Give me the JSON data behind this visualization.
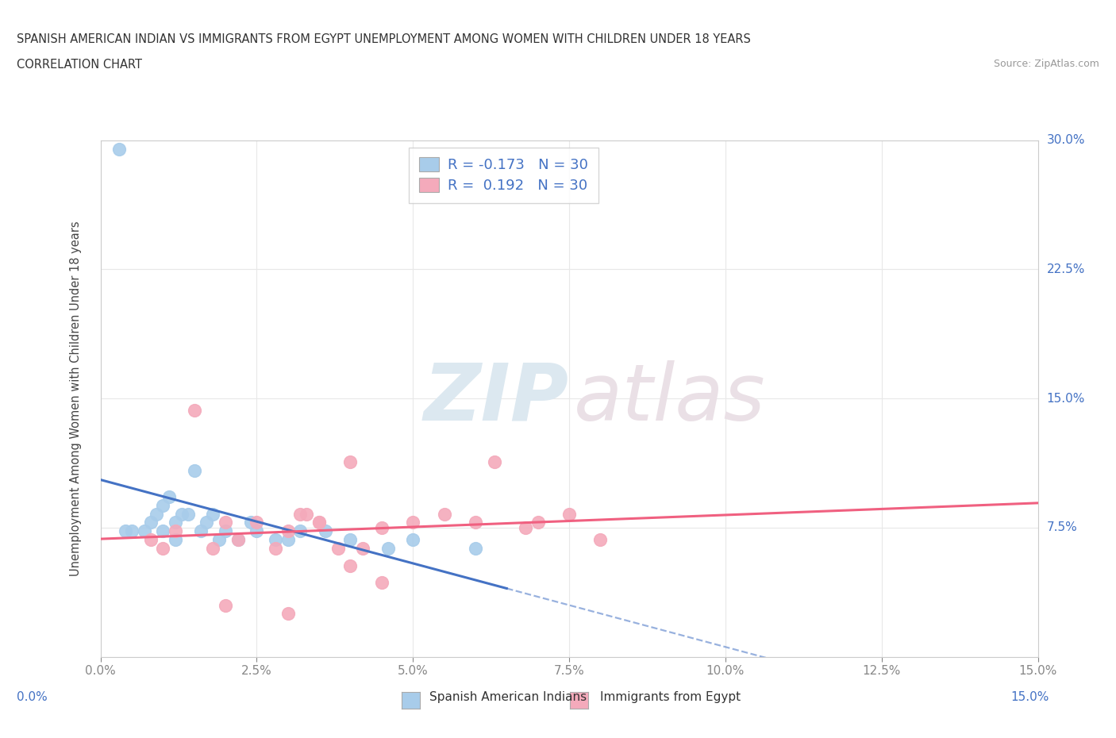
{
  "title_line1": "SPANISH AMERICAN INDIAN VS IMMIGRANTS FROM EGYPT UNEMPLOYMENT AMONG WOMEN WITH CHILDREN UNDER 18 YEARS",
  "title_line2": "CORRELATION CHART",
  "source_text": "Source: ZipAtlas.com",
  "ylabel": "Unemployment Among Women with Children Under 18 years",
  "xlim": [
    0.0,
    0.15
  ],
  "ylim": [
    0.0,
    0.3
  ],
  "blue_R": -0.173,
  "blue_N": 30,
  "pink_R": 0.192,
  "pink_N": 30,
  "blue_color": "#A8CCEA",
  "pink_color": "#F4AABB",
  "trend_blue_color": "#4472C4",
  "trend_pink_color": "#F06080",
  "blue_scatter_x": [
    0.003,
    0.004,
    0.005,
    0.007,
    0.008,
    0.009,
    0.01,
    0.01,
    0.011,
    0.012,
    0.012,
    0.013,
    0.014,
    0.015,
    0.016,
    0.017,
    0.018,
    0.019,
    0.02,
    0.022,
    0.024,
    0.025,
    0.028,
    0.03,
    0.032,
    0.036,
    0.04,
    0.046,
    0.05,
    0.06
  ],
  "blue_scatter_y": [
    0.295,
    0.073,
    0.073,
    0.073,
    0.078,
    0.083,
    0.073,
    0.088,
    0.093,
    0.068,
    0.078,
    0.083,
    0.083,
    0.108,
    0.073,
    0.078,
    0.083,
    0.068,
    0.073,
    0.068,
    0.078,
    0.073,
    0.068,
    0.068,
    0.073,
    0.073,
    0.068,
    0.063,
    0.068,
    0.063
  ],
  "pink_scatter_x": [
    0.008,
    0.01,
    0.012,
    0.015,
    0.018,
    0.02,
    0.022,
    0.025,
    0.028,
    0.03,
    0.032,
    0.033,
    0.035,
    0.038,
    0.04,
    0.042,
    0.045,
    0.05,
    0.055,
    0.06,
    0.063,
    0.068,
    0.07,
    0.075,
    0.08,
    0.035,
    0.04,
    0.02,
    0.045,
    0.03
  ],
  "pink_scatter_y": [
    0.068,
    0.063,
    0.073,
    0.143,
    0.063,
    0.078,
    0.068,
    0.078,
    0.063,
    0.073,
    0.083,
    0.083,
    0.078,
    0.063,
    0.113,
    0.063,
    0.075,
    0.078,
    0.083,
    0.078,
    0.113,
    0.075,
    0.078,
    0.083,
    0.068,
    0.078,
    0.053,
    0.03,
    0.043,
    0.025
  ],
  "background_color": "#FFFFFF",
  "grid_color": "#E8E8E8"
}
